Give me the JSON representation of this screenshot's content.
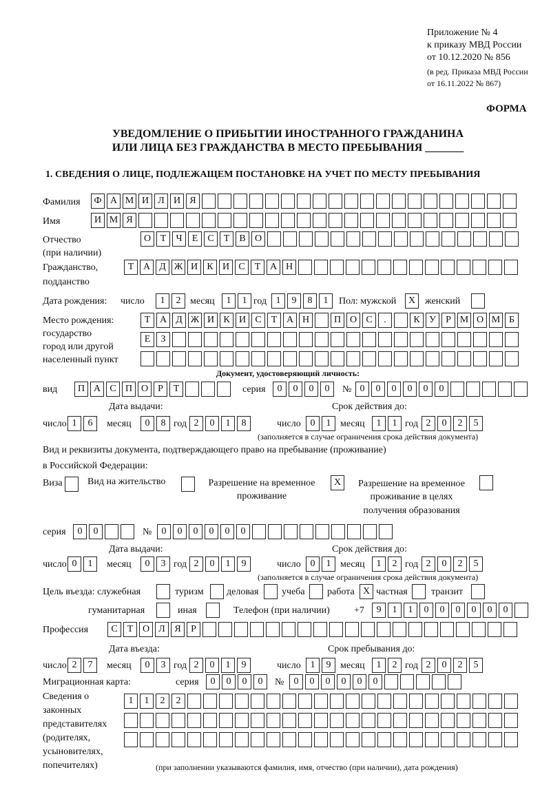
{
  "header": {
    "line1": "Приложение № 4",
    "line2": "к приказу МВД России",
    "line3": "от 10.12.2020 № 856",
    "line4": "(в ред. Приказа МВД России",
    "line5": "от 16.11.2022 № 867)",
    "forma": "ФОРМА"
  },
  "title": {
    "line1": "УВЕДОМЛЕНИЕ О ПРИБЫТИИ ИНОСТРАННОГО ГРАЖДАНИНА",
    "line2": "ИЛИ ЛИЦА БЕЗ ГРАЖДАНСТВА В МЕСТО ПРЕБЫВАНИЯ _______"
  },
  "section1": "1. СВЕДЕНИЯ О ЛИЦЕ, ПОДЛЕЖАЩЕМ ПОСТАНОВКЕ НА УЧЕТ ПО МЕСТУ ПРЕБЫВАНИЯ",
  "labels": {
    "surname": "Фамилия",
    "name": "Имя",
    "patronymic1": "Отчество",
    "patronymic2": "(при наличии)",
    "citizenship1": "Гражданство,",
    "citizenship2": "подданство",
    "birth_date": "Дата рождения:",
    "day": "число",
    "month": "месяц",
    "year": "год",
    "sex": "Пол: мужской",
    "female": "женский",
    "birthplace1": "Место рождения:",
    "birthplace2": "государство",
    "birthplace3": "город или другой",
    "birthplace4": "населенный пункт",
    "id_doc": "Документ, удостоверяющий личность:",
    "kind": "вид",
    "series": "серия",
    "number": "№",
    "issue_date": "Дата выдачи:",
    "valid_until": "Срок действия до:",
    "valid_note": "(заполняется в случае ограничения срока действия документа)",
    "right_doc1": "Вид и реквизиты документа, подтверждающего право на пребывание (проживание)",
    "right_doc2": "в Российской Федерации:",
    "visa": "Виза",
    "residence": "Вид на жительство",
    "temp1": "Разрешение на временное",
    "temp2": "проживание",
    "edu1": "Разрешение на временное",
    "edu2": "проживание в целях",
    "edu3": "получения образования",
    "purpose": "Цель въезда: служебная",
    "tourism": "туризм",
    "business": "деловая",
    "study": "учеба",
    "work": "работа",
    "private": "частная",
    "transit": "транзит",
    "humanitarian": "гуманитарная",
    "other": "иная",
    "phone": "Телефон (при наличии)",
    "phone_code": "+7",
    "profession": "Профессия",
    "entry_date": "Дата въезда:",
    "stay_until": "Срок пребывания до:",
    "migration_card": "Миграционная карта:",
    "reps1": "Сведения о",
    "reps2": "законных",
    "reps3": "представителях",
    "reps4": "(родителях,",
    "reps5": "усыновителях,",
    "reps6": "попечителях)",
    "reps_note": "(при заполнении указываются фамилия, имя, отчество (при наличии), дата рождения)"
  },
  "values": {
    "surname": "ФАМИЛИЯ",
    "name": "ИМЯ",
    "patronymic": "ОТЧЕСТВО",
    "citizenship": "ТАДЖИКИСТАН",
    "birth_day": "12",
    "birth_month": "11",
    "birth_year": "1981",
    "male": "X",
    "female": "",
    "birthplace1": "ТАДЖИКИСТАН ПОС. КУРМОМБ",
    "birthplace2": "ЕЗ",
    "birthplace3": "",
    "doc_kind": "ПАСПОРТ",
    "doc_series": "0000",
    "doc_number": "000000",
    "doc_issue_day": "16",
    "doc_issue_month": "08",
    "doc_issue_year": "2018",
    "doc_valid_day": "01",
    "doc_valid_month": "11",
    "doc_valid_year": "2025",
    "visa": "",
    "residence": "",
    "temp_residence": "X",
    "edu_residence": "",
    "right_series": "00",
    "right_number": "000000",
    "right_issue_day": "01",
    "right_issue_month": "03",
    "right_issue_year": "2019",
    "right_valid_day": "01",
    "right_valid_month": "12",
    "right_valid_year": "2025",
    "p_service": "",
    "p_tourism": "",
    "p_business": "",
    "p_study": "",
    "p_work": "X",
    "p_private": "",
    "p_transit": "",
    "p_humanitarian": "",
    "p_other": "",
    "phone": "911000000",
    "profession": "СТОЛЯР",
    "entry_day": "27",
    "entry_month": "03",
    "entry_year": "2019",
    "stay_day": "19",
    "stay_month": "12",
    "stay_year": "2025",
    "mc_series": "0000",
    "mc_number": "000000",
    "reps1": "1122",
    "reps2": "",
    "reps3": ""
  }
}
